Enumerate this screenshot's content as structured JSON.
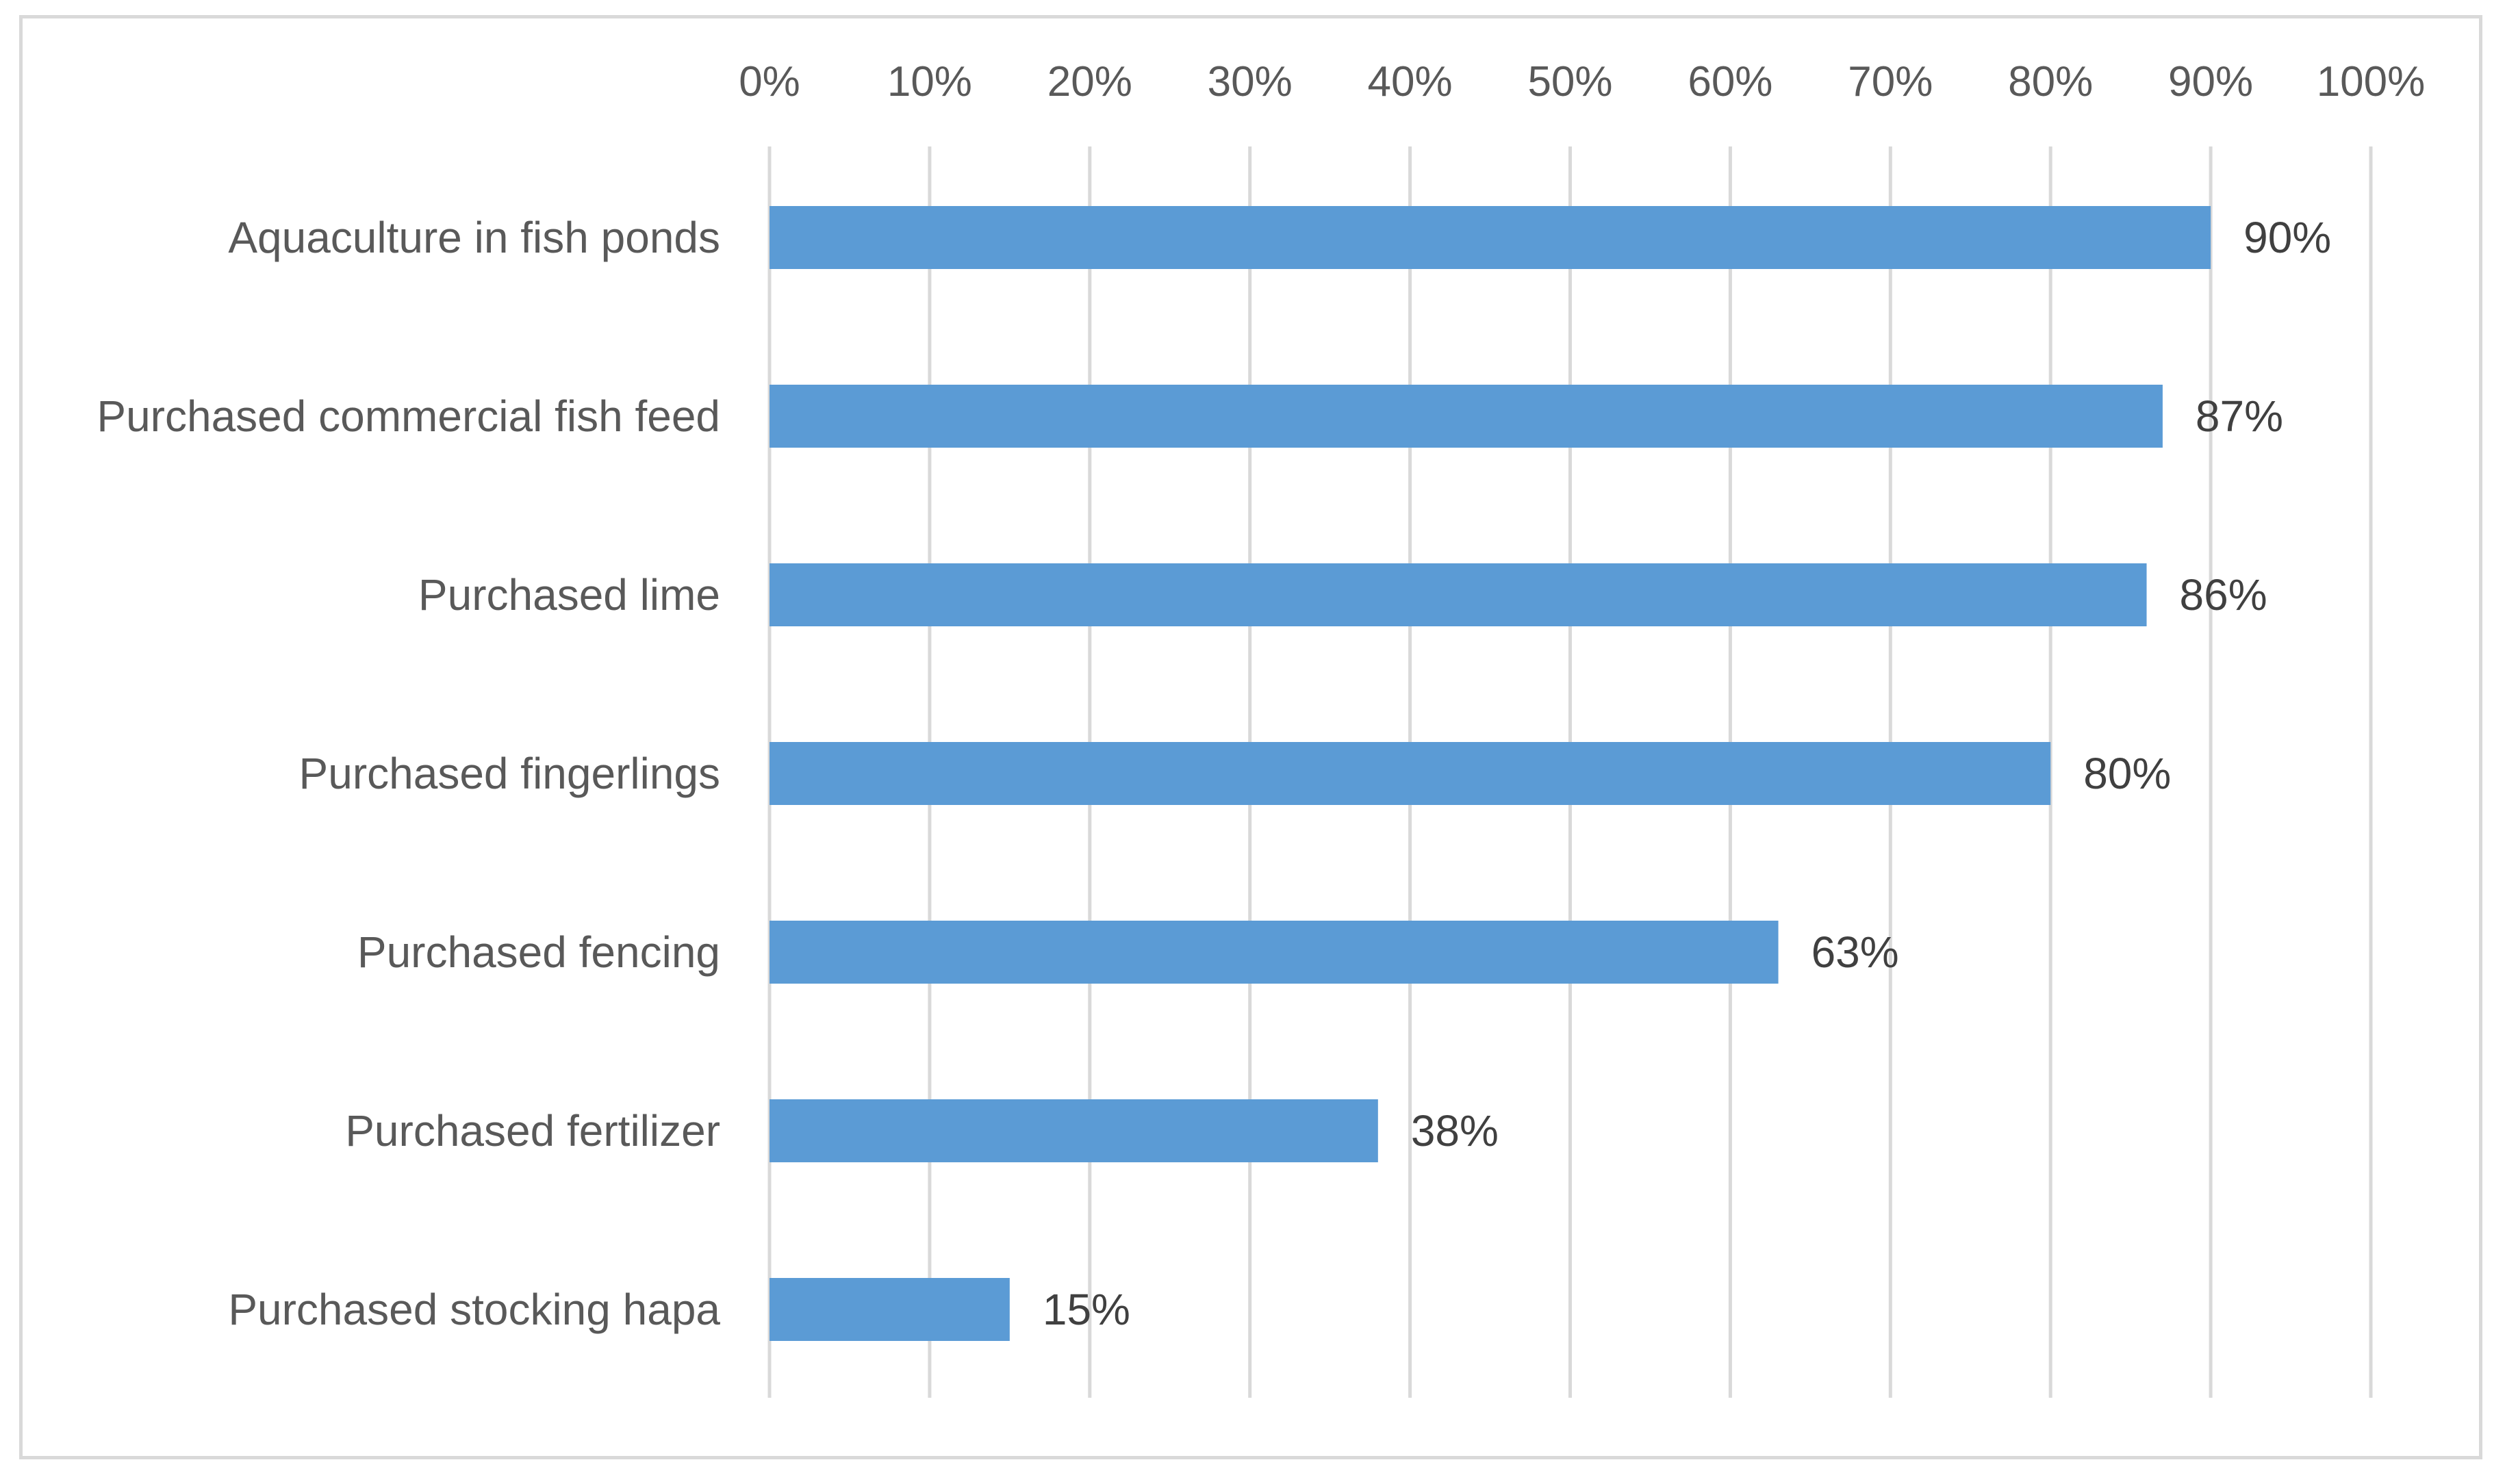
{
  "chart_data": {
    "type": "bar",
    "orientation": "horizontal",
    "title": "",
    "xlabel": "",
    "ylabel": "",
    "xlim": [
      0,
      100
    ],
    "x_ticks": [
      "0%",
      "10%",
      "20%",
      "30%",
      "40%",
      "50%",
      "60%",
      "70%",
      "80%",
      "90%",
      "100%"
    ],
    "x_axis_position": "top",
    "grid": true,
    "legend": "none",
    "categories": [
      "Aquaculture in fish ponds",
      "Purchased commercial fish feed",
      "Purchased lime",
      "Purchased fingerlings",
      "Purchased fencing",
      "Purchased fertilizer",
      "Purchased stocking hapa"
    ],
    "values": [
      90,
      87,
      86,
      80,
      63,
      38,
      15
    ],
    "data_labels": [
      "90%",
      "87%",
      "86%",
      "80%",
      "63%",
      "38%",
      "15%"
    ],
    "colors": {
      "bar": "#5b9bd5",
      "grid": "#d9d9d9",
      "tick_text": "#595959",
      "label_text": "#404040"
    }
  }
}
